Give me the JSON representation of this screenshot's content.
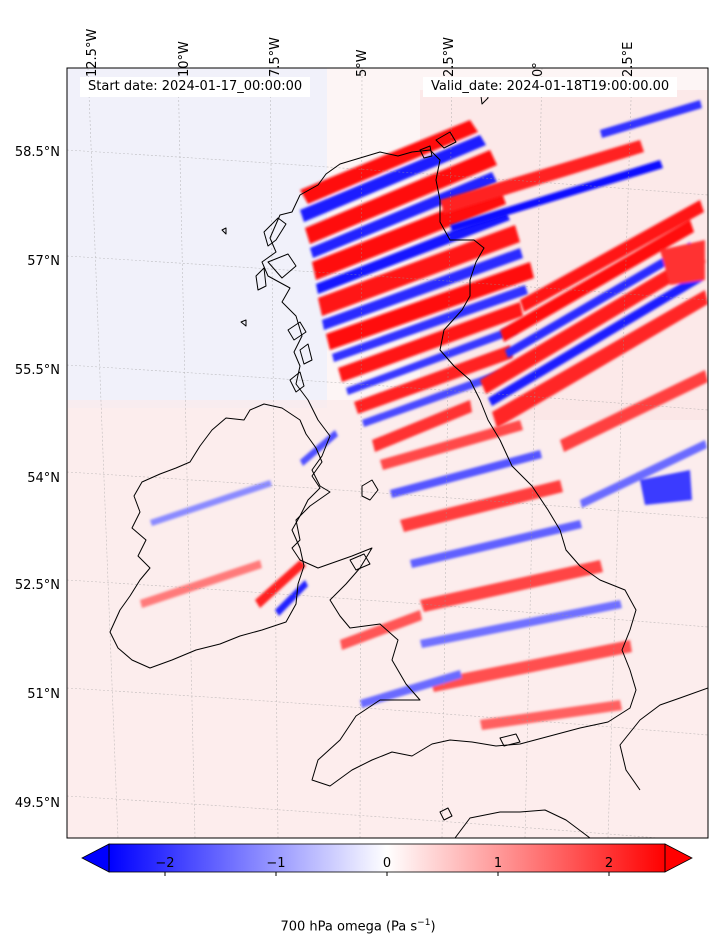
{
  "map": {
    "start_date": "Start date: 2024-01-17_00:00:00",
    "valid_date": "Valid_date: 2024-01-18T19:00:00.00",
    "lon_labels": [
      "12.5°W",
      "10°W",
      "7.5°W",
      "5°W",
      "2.5°W",
      "0°",
      "2.5°E"
    ],
    "lat_labels": [
      "58.5°N",
      "57°N",
      "55.5°N",
      "54°N",
      "52.5°N",
      "51°N",
      "49.5°N"
    ]
  },
  "colorbar": {
    "title_prefix": "700 hPa omega (Pa s",
    "title_exp": "−1",
    "title_suffix": ")",
    "tick_labels": [
      "−2",
      "−1",
      "0",
      "1",
      "2"
    ],
    "range": [
      -2.5,
      2.5
    ],
    "colors": {
      "negative": "#0000ff",
      "zero": "#ffffff",
      "positive": "#ff0000"
    }
  }
}
